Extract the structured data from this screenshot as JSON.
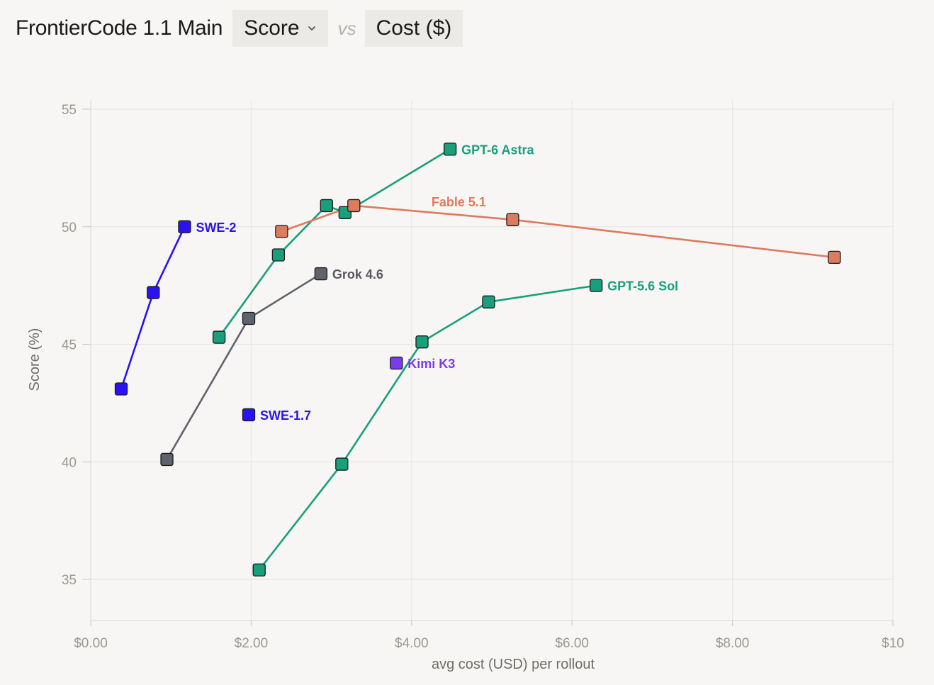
{
  "header": {
    "title": "FrontierCode 1.1 Main",
    "metric_select": "Score",
    "vs_label": "vs",
    "cost_button": "Cost ($)"
  },
  "chart_data": {
    "type": "scatter",
    "xlabel": "avg cost (USD) per rollout",
    "ylabel": "Score (%)",
    "xlim": [
      0,
      10
    ],
    "ylim": [
      35,
      55
    ],
    "x_ticks": [
      "$0.00",
      "$2.00",
      "$4.00",
      "$6.00",
      "$8.00",
      "$10"
    ],
    "y_ticks": [
      "35",
      "40",
      "45",
      "50",
      "55"
    ],
    "grid": true,
    "series": [
      {
        "name": "SWE-2",
        "color": "#2a12f2",
        "connected": true,
        "x": [
          0.38,
          0.78,
          1.17
        ],
        "y": [
          43.1,
          47.2,
          50.0
        ]
      },
      {
        "name": "SWE-1.7",
        "color": "#2a12f2",
        "connected": false,
        "x": [
          1.97
        ],
        "y": [
          42.0
        ]
      },
      {
        "name": "Grok 4.6",
        "color": "#5f636b",
        "connected": true,
        "x": [
          0.95,
          1.97,
          2.87
        ],
        "y": [
          40.1,
          46.1,
          48.0
        ]
      },
      {
        "name": "GPT-6 Astra",
        "color": "#17a07b",
        "connected": true,
        "x": [
          1.6,
          2.34,
          2.94,
          3.17,
          4.48
        ],
        "y": [
          45.3,
          48.8,
          50.9,
          50.6,
          53.3
        ]
      },
      {
        "name": "Fable 5.1",
        "color": "#dc7b5d",
        "connected": true,
        "x": [
          2.38,
          3.28,
          5.26,
          9.27
        ],
        "y": [
          49.8,
          50.9,
          50.3,
          48.7
        ]
      },
      {
        "name": "GPT-5.6 Sol",
        "color": "#17a07b",
        "connected": true,
        "x": [
          2.1,
          3.13,
          4.13,
          4.96,
          6.3
        ],
        "y": [
          35.4,
          39.9,
          45.1,
          46.8,
          47.5
        ]
      },
      {
        "name": "Kimi K3",
        "color": "#7c3aed",
        "connected": false,
        "x": [
          3.81
        ],
        "y": [
          44.2
        ]
      }
    ]
  }
}
